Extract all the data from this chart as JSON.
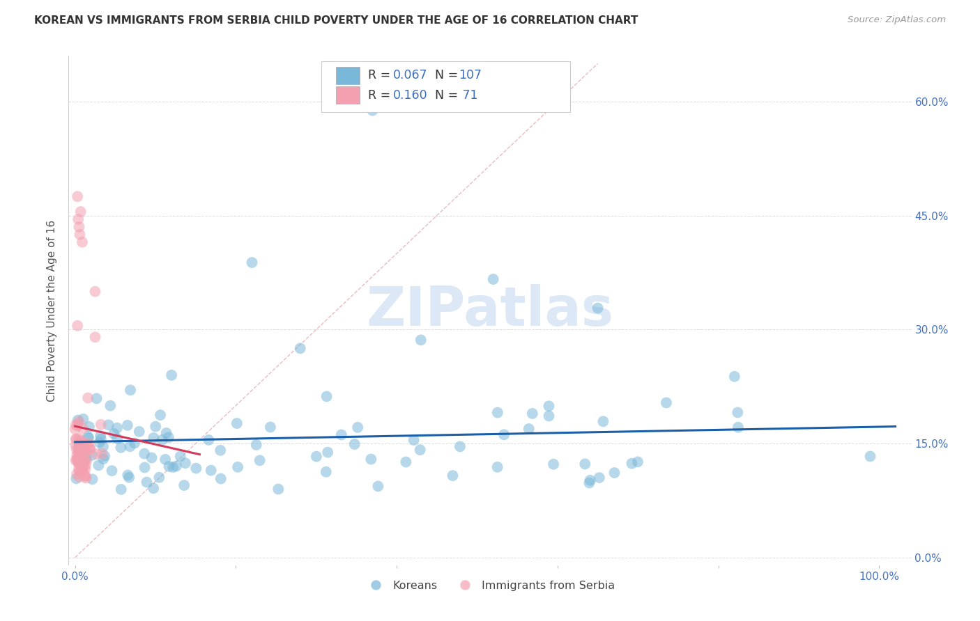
{
  "title": "KOREAN VS IMMIGRANTS FROM SERBIA CHILD POVERTY UNDER THE AGE OF 16 CORRELATION CHART",
  "source": "Source: ZipAtlas.com",
  "ylabel": "Child Poverty Under the Age of 16",
  "korean_color": "#7ab8d9",
  "serbia_color": "#f4a0b0",
  "trendline_korean_color": "#1a5fa8",
  "trendline_serbia_color": "#d63a5a",
  "diagonal_color": "#e8b4b8",
  "grid_color": "#dddddd",
  "background_color": "#ffffff",
  "legend_r_korean": "0.067",
  "legend_n_korean": "107",
  "legend_r_serbia": "0.160",
  "legend_n_serbia": " 71",
  "blue_text_color": "#3a6ebd",
  "dark_text_color": "#333333",
  "axis_color": "#4472c4",
  "watermark_color": "#dce8f5"
}
